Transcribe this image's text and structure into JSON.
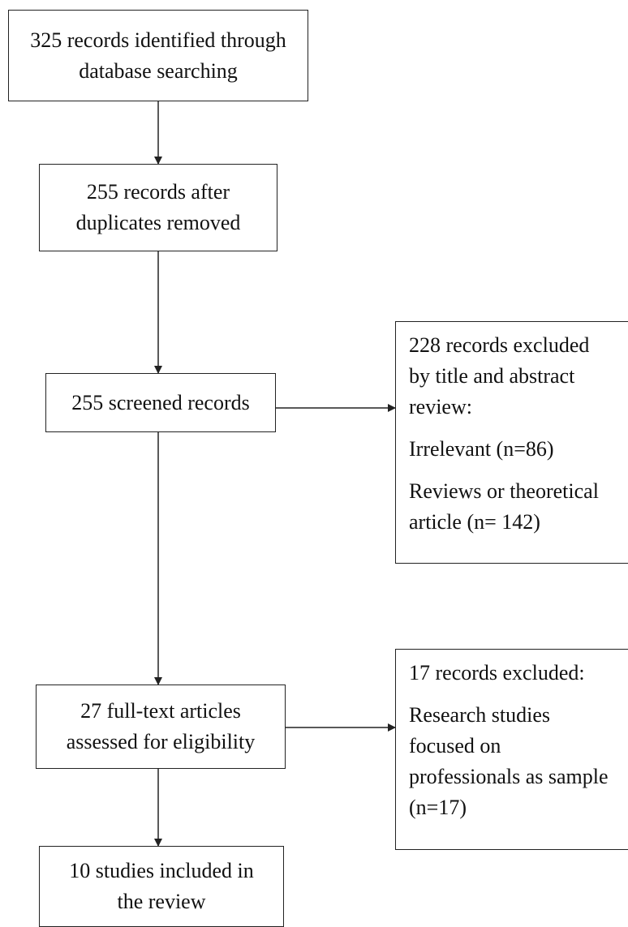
{
  "colors": {
    "stroke": "#222222",
    "text": "#111111",
    "background": "#ffffff"
  },
  "boxes": {
    "identified": {
      "lines": [
        "325 records identified through",
        "database searching"
      ]
    },
    "deduplicated": {
      "lines": [
        "255 records after",
        "duplicates removed"
      ]
    },
    "screened": {
      "lines": [
        "255 screened records"
      ]
    },
    "excluded_screening": {
      "heading": [
        "228 records excluded",
        "by title and abstract",
        "review:"
      ],
      "irrelevant": "Irrelevant (n=86)",
      "reviews": [
        "Reviews or theoretical",
        "article (n= 142)"
      ]
    },
    "full_text": {
      "lines": [
        "27 full-text articles",
        "assessed for eligibility"
      ]
    },
    "excluded_fulltext": {
      "heading": "17  records excluded:",
      "reason": [
        "Research studies",
        "focused on",
        "professionals as sample",
        "(n=17)"
      ]
    },
    "included": {
      "lines": [
        "10 studies included in",
        "the review"
      ]
    }
  }
}
